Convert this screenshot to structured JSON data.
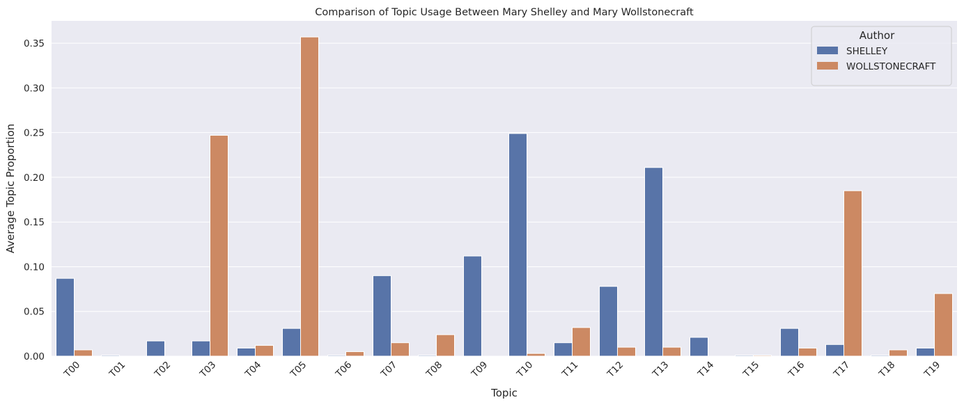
{
  "chart_data": {
    "type": "bar",
    "title": "Comparison of Topic Usage Between Mary Shelley and Mary Wollstonecraft",
    "xlabel": "Topic",
    "ylabel": "Average Topic Proportion",
    "ylim": [
      0,
      0.375
    ],
    "yticks": [
      "0.00",
      "0.05",
      "0.10",
      "0.15",
      "0.20",
      "0.25",
      "0.30",
      "0.35"
    ],
    "grid": true,
    "categories": [
      "T00",
      "T01",
      "T02",
      "T03",
      "T04",
      "T05",
      "T06",
      "T07",
      "T08",
      "T09",
      "T10",
      "T11",
      "T12",
      "T13",
      "T14",
      "T15",
      "T16",
      "T17",
      "T18",
      "T19"
    ],
    "legend": {
      "title": "Author",
      "placement": "top-right"
    },
    "series": [
      {
        "name": "SHELLEY",
        "color": "#5874a8",
        "values": [
          0.087,
          0.001,
          0.017,
          0.017,
          0.009,
          0.031,
          0.001,
          0.09,
          0.001,
          0.112,
          0.249,
          0.015,
          0.078,
          0.211,
          0.021,
          0.001,
          0.031,
          0.013,
          0.001,
          0.009
        ]
      },
      {
        "name": "WOLLSTONECRAFT",
        "color": "#cc8963",
        "values": [
          0.007,
          0.0,
          0.0,
          0.247,
          0.012,
          0.357,
          0.005,
          0.015,
          0.024,
          0.0,
          0.003,
          0.032,
          0.01,
          0.01,
          0.0,
          0.001,
          0.009,
          0.185,
          0.007,
          0.07
        ]
      }
    ]
  }
}
